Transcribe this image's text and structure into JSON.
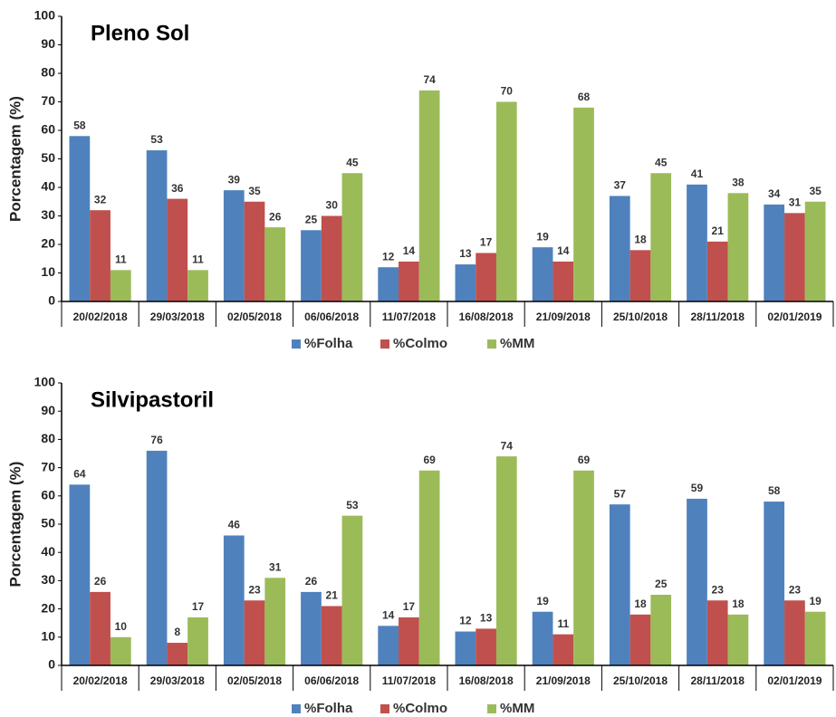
{
  "chart_data": [
    {
      "type": "bar",
      "title": "Pleno Sol",
      "y_label": "Porcentagem (%)",
      "categories": [
        "20/02/2018",
        "29/03/2018",
        "02/05/2018",
        "06/06/2018",
        "11/07/2018",
        "16/08/2018",
        "21/09/2018",
        "25/10/2018",
        "28/11/2018",
        "02/01/2019"
      ],
      "series": [
        {
          "name": "%Folha",
          "color": "#4f81bd",
          "values": [
            58,
            53,
            39,
            25,
            12,
            13,
            19,
            37,
            41,
            34
          ]
        },
        {
          "name": "%Colmo",
          "color": "#c0504d",
          "values": [
            32,
            36,
            35,
            30,
            14,
            17,
            14,
            18,
            21,
            31
          ]
        },
        {
          "name": "%MM",
          "color": "#9bbb59",
          "values": [
            11,
            11,
            26,
            45,
            74,
            70,
            68,
            45,
            38,
            35
          ]
        }
      ],
      "ylim": [
        0,
        100
      ],
      "yticks": [
        0,
        10,
        20,
        30,
        40,
        50,
        60,
        70,
        80,
        90,
        100
      ],
      "grid": false,
      "legend": "bottom"
    },
    {
      "type": "bar",
      "title": "Silvipastoril",
      "y_label": "Porcentagem (%)",
      "categories": [
        "20/02/2018",
        "29/03/2018",
        "02/05/2018",
        "06/06/2018",
        "11/07/2018",
        "16/08/2018",
        "21/09/2018",
        "25/10/2018",
        "28/11/2018",
        "02/01/2019"
      ],
      "series": [
        {
          "name": "%Folha",
          "color": "#4f81bd",
          "values": [
            64,
            76,
            46,
            26,
            14,
            12,
            19,
            57,
            59,
            58
          ]
        },
        {
          "name": "%Colmo",
          "color": "#c0504d",
          "values": [
            26,
            8,
            23,
            21,
            17,
            13,
            11,
            18,
            23,
            23
          ]
        },
        {
          "name": "%MM",
          "color": "#9bbb59",
          "values": [
            10,
            17,
            31,
            53,
            69,
            74,
            69,
            25,
            18,
            19
          ]
        }
      ],
      "ylim": [
        0,
        100
      ],
      "yticks": [
        0,
        10,
        20,
        30,
        40,
        50,
        60,
        70,
        80,
        90,
        100
      ],
      "grid": false,
      "legend": "bottom"
    }
  ]
}
